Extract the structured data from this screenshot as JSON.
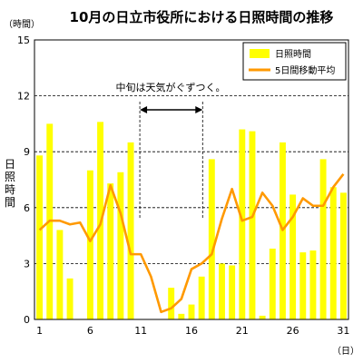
{
  "chart_data": {
    "type": "bar",
    "title": "10月の日立市役所における日照時間の推移",
    "ylabel": "日照時間",
    "yunit": "（時間）",
    "xunit": "（日）",
    "ylim": [
      0,
      15
    ],
    "yticks": [
      0,
      3,
      6,
      9,
      12,
      15
    ],
    "xticks": [
      1,
      6,
      11,
      16,
      21,
      26,
      31
    ],
    "days": [
      1,
      2,
      3,
      4,
      5,
      6,
      7,
      8,
      9,
      10,
      11,
      12,
      13,
      14,
      15,
      16,
      17,
      18,
      19,
      20,
      21,
      22,
      23,
      24,
      25,
      26,
      27,
      28,
      29,
      30,
      31
    ],
    "series": [
      {
        "name": "日照時間",
        "kind": "bar",
        "color": "#ffff00",
        "values": [
          8.8,
          10.5,
          4.8,
          2.2,
          0,
          8.0,
          10.6,
          7.3,
          7.9,
          9.5,
          0,
          0,
          0,
          1.7,
          0.3,
          0.8,
          2.3,
          8.6,
          3.0,
          2.9,
          10.2,
          10.1,
          0.2,
          3.8,
          9.5,
          6.7,
          3.6,
          3.7,
          8.6,
          7.1,
          6.8
        ]
      },
      {
        "name": "5日間移動平均",
        "kind": "line",
        "color": "#ff9900",
        "values": [
          4.8,
          5.3,
          5.3,
          5.1,
          5.2,
          4.2,
          5.1,
          7.2,
          5.7,
          3.5,
          3.5,
          2.3,
          0.4,
          0.6,
          1.1,
          2.7,
          3.0,
          3.5,
          5.4,
          7.0,
          5.3,
          5.5,
          6.8,
          6.1,
          4.8,
          5.5,
          6.5,
          6.1,
          6.1,
          7.1,
          7.8
        ]
      }
    ],
    "grid": {
      "y_dashed": true
    },
    "legend": {
      "position": "top-right"
    },
    "annotation": {
      "text": "中旬は天気がぐずつく。",
      "from_day": 11,
      "to_day": 17
    }
  }
}
